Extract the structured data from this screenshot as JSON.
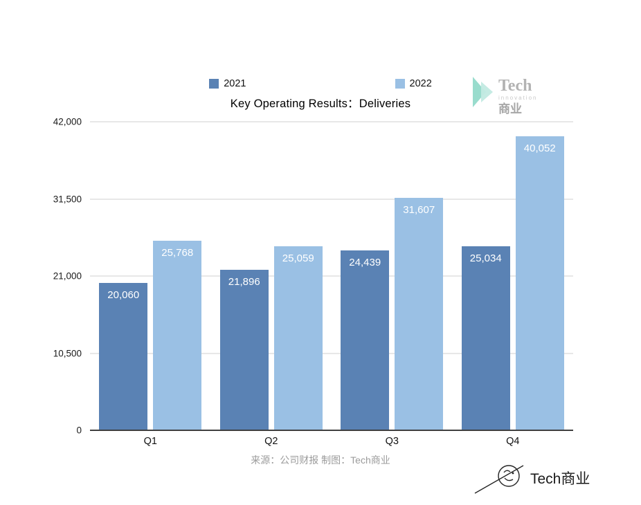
{
  "chart_data": {
    "type": "bar",
    "title": "Key Operating Results：Deliveries",
    "categories": [
      "Q1",
      "Q2",
      "Q3",
      "Q4"
    ],
    "series": [
      {
        "name": "2021",
        "color": "#5a82b4",
        "values": [
          20060,
          21896,
          24439,
          25034
        ],
        "labels": [
          "20,060",
          "21,896",
          "24,439",
          "25,034"
        ]
      },
      {
        "name": "2022",
        "color": "#9ac0e4",
        "values": [
          25768,
          25059,
          31607,
          40052
        ],
        "labels": [
          "25,768",
          "25,059",
          "31,607",
          "40,052"
        ]
      }
    ],
    "ylim": [
      0,
      42000
    ],
    "yticks": [
      0,
      10500,
      21000,
      31500,
      42000
    ],
    "ytick_labels": [
      "0",
      "10,500",
      "21,000",
      "31,500",
      "42,000"
    ],
    "grid": "horizontal",
    "legend_position": "top-center",
    "xlabel": "",
    "ylabel": ""
  },
  "branding": {
    "logo_title": "Tech",
    "logo_subtitle": "innovation",
    "logo_cn": "商业",
    "logo_accent_color": "#8ed8c8"
  },
  "footer": {
    "source_text": "来源：公司财报 制图：Tech商业"
  },
  "watermark": {
    "text": "Tech商业"
  }
}
